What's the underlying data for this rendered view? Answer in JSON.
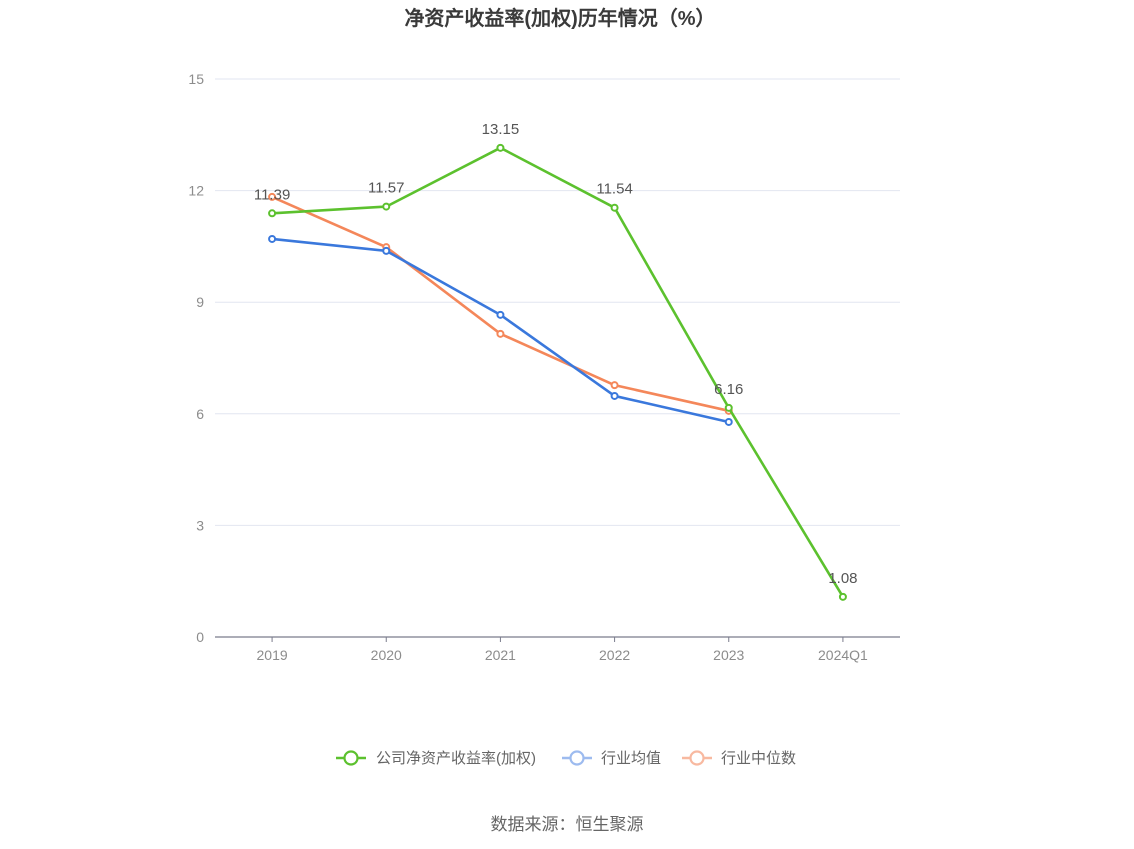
{
  "chart_data": {
    "type": "line",
    "title": "净资产收益率(加权)历年情况（%）",
    "xlabel": "",
    "ylabel": "",
    "categories": [
      "2019",
      "2020",
      "2021",
      "2022",
      "2023",
      "2024Q1"
    ],
    "ylim": [
      0,
      15
    ],
    "yticks": [
      0,
      3,
      6,
      9,
      12,
      15
    ],
    "grid": true,
    "legend_position": "bottom",
    "series": [
      {
        "name": "公司净资产收益率(加权)",
        "color": "#5cc12e",
        "legend_color": "#5cc12e",
        "show_labels": true,
        "values": [
          11.39,
          11.57,
          13.15,
          11.54,
          6.16,
          1.08
        ]
      },
      {
        "name": "行业均值",
        "color": "#3a78dc",
        "legend_color": "#9dbbef",
        "show_labels": false,
        "values": [
          10.7,
          10.38,
          8.66,
          6.48,
          5.78,
          null
        ]
      },
      {
        "name": "行业中位数",
        "color": "#f4875a",
        "legend_color": "#f8b9a0",
        "show_labels": false,
        "values": [
          11.83,
          10.48,
          8.15,
          6.77,
          6.08,
          null
        ]
      }
    ]
  },
  "source": "数据来源：恒生聚源"
}
